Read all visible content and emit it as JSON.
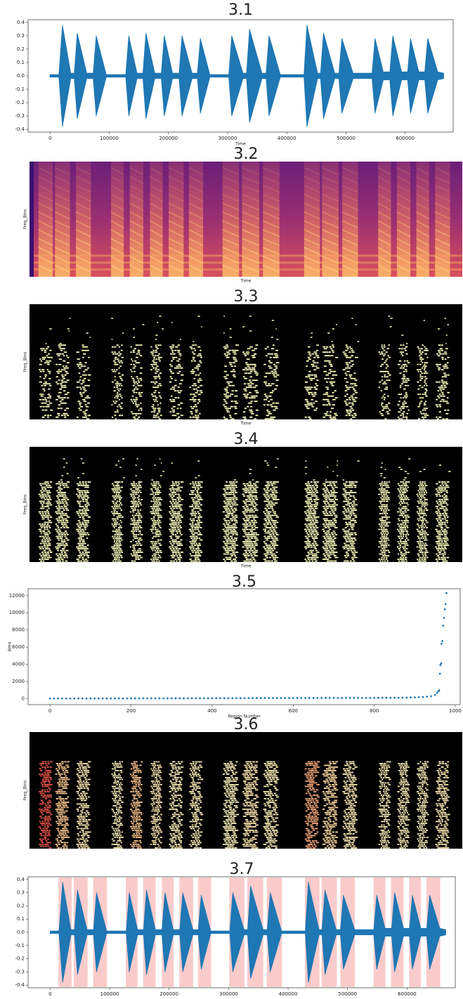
{
  "chart_data": [
    {
      "type": "waveform",
      "title": "3.1",
      "xlabel": "Time",
      "color": "#1f77b4",
      "x": [
        0,
        15000,
        21000,
        35000,
        41000,
        46000,
        62000,
        73000,
        78000,
        95000,
        128000,
        133000,
        147000,
        157000,
        162000,
        177000,
        188000,
        193000,
        207000,
        218000,
        223000,
        240000,
        249000,
        254000,
        270000,
        302000,
        307000,
        326000,
        332000,
        337000,
        358000,
        365000,
        370000,
        389000,
        429000,
        434000,
        452000,
        457000,
        462000,
        481000,
        488000,
        493000,
        512000,
        544000,
        549000,
        563000,
        574000,
        579000,
        594000,
        604000,
        609000,
        623000,
        633000,
        638000,
        655000,
        665000
      ],
      "values": [
        0.01,
        0.01,
        0.38,
        0.02,
        0.02,
        0.32,
        0.02,
        0.02,
        0.3,
        0.01,
        0.01,
        0.3,
        0.02,
        0.02,
        0.32,
        0.02,
        0.02,
        0.3,
        0.02,
        0.02,
        0.3,
        0.02,
        0.02,
        0.28,
        0.01,
        0.01,
        0.3,
        0.02,
        0.02,
        0.35,
        0.02,
        0.02,
        0.3,
        0.01,
        0.01,
        0.38,
        0.02,
        0.02,
        0.32,
        0.02,
        0.02,
        0.28,
        0.02,
        0.02,
        0.28,
        0.03,
        0.03,
        0.3,
        0.03,
        0.03,
        0.28,
        0.03,
        0.03,
        0.28,
        0.03,
        0.02
      ],
      "xlim": [
        -37000,
        681000
      ],
      "xticks": [
        0,
        100000,
        200000,
        300000,
        400000,
        500000,
        600000
      ],
      "ylim": [
        -0.42,
        0.42
      ],
      "yticks": [
        -0.4,
        -0.3,
        -0.2,
        -0.1,
        {
          "value": 0,
          "label": "0.0"
        },
        0.1,
        0.2,
        0.3,
        0.4
      ]
    },
    {
      "type": "spectrogram",
      "title": "3.2",
      "xlabel": "Time",
      "ylabel": "Freq_Bins"
    },
    {
      "type": "mask",
      "title": "3.3",
      "xlabel": "Time",
      "ylabel": "Freq_Bins",
      "color": "#fcfdbf"
    },
    {
      "type": "mask",
      "title": "3.4",
      "xlabel": "Time",
      "ylabel": "Freq_Bins",
      "color": "#fcfdbf"
    },
    {
      "type": "scatter",
      "title": "3.5",
      "xlabel": "Region Number",
      "ylabel": "Area",
      "color": "#1f77b4",
      "x": [
        0,
        10,
        20,
        30,
        40,
        50,
        60,
        70,
        80,
        90,
        100,
        110,
        120,
        130,
        140,
        150,
        160,
        170,
        180,
        190,
        200,
        210,
        220,
        230,
        240,
        250,
        260,
        270,
        280,
        290,
        300,
        310,
        320,
        330,
        340,
        350,
        360,
        370,
        380,
        390,
        400,
        410,
        420,
        430,
        440,
        450,
        460,
        470,
        480,
        490,
        500,
        510,
        520,
        530,
        540,
        550,
        560,
        570,
        580,
        590,
        600,
        610,
        620,
        630,
        640,
        650,
        660,
        670,
        680,
        690,
        700,
        710,
        720,
        730,
        740,
        750,
        760,
        770,
        780,
        790,
        800,
        810,
        820,
        830,
        840,
        850,
        860,
        870,
        880,
        890,
        900,
        910,
        920,
        930,
        940,
        950,
        955,
        958,
        960,
        962,
        963,
        965,
        966,
        968,
        970,
        972,
        974,
        976,
        978
      ],
      "values": [
        10,
        11,
        12,
        13,
        14,
        15,
        16,
        17,
        18,
        19,
        20,
        21,
        22,
        23,
        24,
        25,
        26,
        27,
        28,
        29,
        30,
        31,
        32,
        33,
        34,
        35,
        36,
        37,
        38,
        39,
        40,
        41,
        42,
        43,
        44,
        45,
        46,
        47,
        48,
        49,
        50,
        51,
        52,
        53,
        54,
        55,
        56,
        57,
        58,
        59,
        60,
        61,
        62,
        63,
        64,
        65,
        66,
        67,
        68,
        69,
        70,
        71,
        72,
        73,
        74,
        75,
        76,
        77,
        78,
        79,
        80,
        81,
        82,
        83,
        84,
        85,
        86,
        87,
        88,
        89,
        90,
        91,
        92,
        93,
        94,
        95,
        100,
        110,
        120,
        135,
        150,
        170,
        195,
        230,
        280,
        420,
        650,
        850,
        950,
        2900,
        3900,
        4100,
        6400,
        6700,
        8500,
        9400,
        10400,
        11000,
        12300
      ],
      "xlim": [
        -54,
        1012
      ],
      "xticks": [
        0,
        200,
        400,
        600,
        800,
        1000
      ],
      "ylim": [
        -700,
        12800
      ],
      "yticks": [
        0,
        2000,
        4000,
        6000,
        8000,
        10000,
        12000
      ]
    },
    {
      "type": "mask",
      "title": "3.6",
      "ylabel": "Freq_Bins",
      "colors": [
        "#e8534a",
        "#f9c68f",
        "#fde9b4",
        "#fcf1ba",
        "#f8c28c",
        "#fde6b0",
        "#fcf0b8",
        "#fdedb6",
        "#fcf1ba",
        "#fbe3ac",
        "#fdeeb7",
        "#f4a77a",
        "#fad7a0",
        "#fde9b4",
        "#fcf1ba",
        "#fdedb6",
        "#fcf0b8",
        "#fde9b4"
      ]
    },
    {
      "type": "waveform",
      "title": "3.7",
      "color": "#1f77b4",
      "spans_color": "#f7a8a8",
      "x": [
        0,
        15000,
        21000,
        35000,
        41000,
        46000,
        62000,
        73000,
        78000,
        95000,
        128000,
        133000,
        147000,
        157000,
        162000,
        177000,
        188000,
        193000,
        207000,
        218000,
        223000,
        240000,
        249000,
        254000,
        270000,
        302000,
        307000,
        326000,
        332000,
        337000,
        358000,
        365000,
        370000,
        389000,
        429000,
        434000,
        452000,
        457000,
        462000,
        481000,
        488000,
        493000,
        512000,
        544000,
        549000,
        563000,
        574000,
        579000,
        594000,
        604000,
        609000,
        623000,
        633000,
        638000,
        655000,
        665000
      ],
      "values": [
        0.01,
        0.01,
        0.38,
        0.02,
        0.02,
        0.32,
        0.02,
        0.02,
        0.3,
        0.01,
        0.01,
        0.3,
        0.02,
        0.02,
        0.32,
        0.02,
        0.02,
        0.3,
        0.02,
        0.02,
        0.3,
        0.02,
        0.02,
        0.28,
        0.01,
        0.01,
        0.3,
        0.02,
        0.02,
        0.35,
        0.02,
        0.02,
        0.3,
        0.01,
        0.01,
        0.38,
        0.02,
        0.02,
        0.32,
        0.02,
        0.02,
        0.28,
        0.02,
        0.02,
        0.28,
        0.03,
        0.03,
        0.3,
        0.03,
        0.03,
        0.28,
        0.03,
        0.03,
        0.28,
        0.03,
        0.02
      ],
      "spans": [
        [
          14000,
          36200
        ],
        [
          39700,
          63000
        ],
        [
          72400,
          95700
        ],
        [
          127200,
          147000
        ],
        [
          156400,
          177400
        ],
        [
          187900,
          207700
        ],
        [
          217100,
          240400
        ],
        [
          248600,
          270700
        ],
        [
          301100,
          326800
        ],
        [
          331400,
          358300
        ],
        [
          364100,
          389800
        ],
        [
          428300,
          452800
        ],
        [
          456300,
          482000
        ],
        [
          487800,
          512300
        ],
        [
          543800,
          563700
        ],
        [
          573000,
          594000
        ],
        [
          603300,
          623200
        ],
        [
          632500,
          655800
        ]
      ],
      "xlim": [
        -37000,
        681000
      ],
      "xticks": [
        0,
        100000,
        200000,
        300000,
        400000,
        500000,
        600000
      ],
      "ylim": [
        -0.42,
        0.42
      ],
      "yticks": [
        -0.4,
        -0.3,
        -0.2,
        -0.1,
        {
          "value": 0,
          "label": "0.0"
        },
        0.1,
        0.2,
        0.3,
        0.4
      ]
    }
  ]
}
